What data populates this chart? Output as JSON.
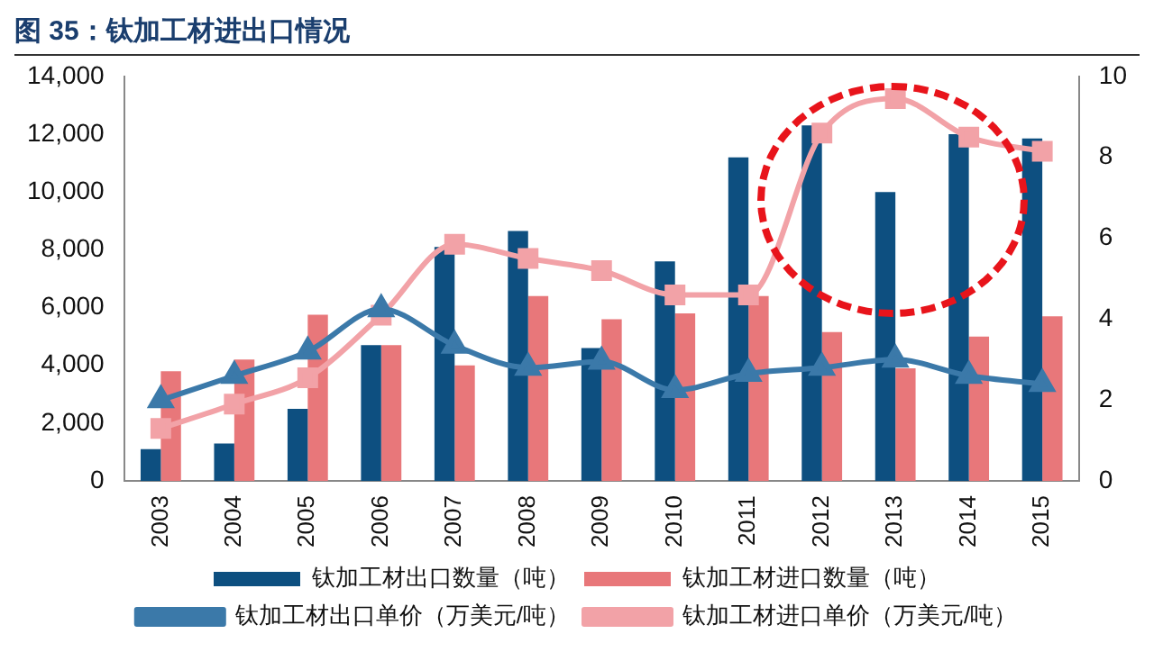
{
  "chart_data": {
    "type": "bar",
    "title": "图 35：钛加工材进出口情况",
    "categories": [
      "2003",
      "2004",
      "2005",
      "2006",
      "2007",
      "2008",
      "2009",
      "2010",
      "2011",
      "2012",
      "2013",
      "2014",
      "2015"
    ],
    "series": [
      {
        "name": "钛加工材出口数量（吨）",
        "color": "#0d4f80",
        "values": [
          1100,
          1300,
          2500,
          4700,
          8100,
          8650,
          4600,
          7600,
          11200,
          12300,
          10000,
          12000,
          11850
        ]
      },
      {
        "name": "钛加工材进口数量（吨）",
        "color": "#e8777a",
        "values": [
          3800,
          4200,
          5750,
          4700,
          4000,
          6400,
          5600,
          5800,
          6400,
          5150,
          3900,
          5000,
          5700
        ]
      },
      {
        "name": "钛加工材出口单价（万美元/吨）",
        "type": "line",
        "axis": "y2",
        "marker": "triangle",
        "color": "#3b79a9",
        "values": [
          2.0,
          2.6,
          3.2,
          4.25,
          3.35,
          2.8,
          2.95,
          2.25,
          2.65,
          2.8,
          3.0,
          2.6,
          2.4
        ]
      },
      {
        "name": "钛加工材进口单价（万美元/吨）",
        "type": "line",
        "axis": "y2",
        "marker": "square",
        "color": "#f2a2a7",
        "values": [
          1.3,
          1.9,
          2.55,
          4.1,
          5.85,
          5.5,
          5.2,
          4.6,
          4.6,
          8.6,
          9.45,
          8.5,
          8.15
        ]
      }
    ],
    "ylim": [
      0,
      14000
    ],
    "yticks": [
      {
        "value": 0,
        "label": "0"
      },
      {
        "value": 2000,
        "label": "2,000"
      },
      {
        "value": 4000,
        "label": "4,000"
      },
      {
        "value": 6000,
        "label": "6,000"
      },
      {
        "value": 8000,
        "label": "8,000"
      },
      {
        "value": 10000,
        "label": "10,000"
      },
      {
        "value": 12000,
        "label": "12,000"
      },
      {
        "value": 14000,
        "label": "14,000"
      }
    ],
    "y2lim": [
      0,
      10
    ],
    "y2ticks": [
      0,
      2,
      4,
      6,
      8,
      10
    ],
    "grid": false,
    "legend": "bottom"
  }
}
